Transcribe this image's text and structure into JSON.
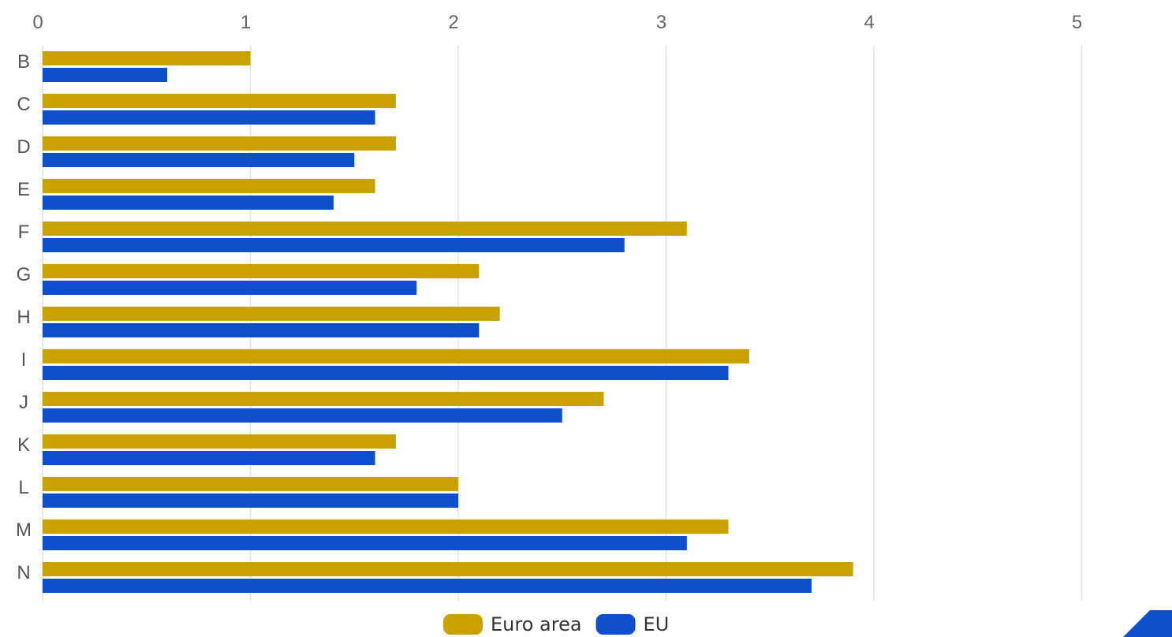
{
  "chart_data": {
    "type": "bar",
    "orientation": "horizontal",
    "categories": [
      "B",
      "C",
      "D",
      "E",
      "F",
      "G",
      "H",
      "I",
      "J",
      "K",
      "L",
      "M",
      "N"
    ],
    "series": [
      {
        "name": "Euro area",
        "color": "#c9a100",
        "values": [
          1.0,
          1.7,
          1.7,
          1.6,
          3.1,
          2.1,
          2.2,
          3.4,
          2.7,
          1.7,
          2.0,
          3.3,
          3.9
        ]
      },
      {
        "name": "EU",
        "color": "#0e4fcc",
        "values": [
          0.6,
          1.6,
          1.5,
          1.4,
          2.8,
          1.8,
          2.1,
          3.3,
          2.5,
          1.6,
          2.0,
          3.1,
          3.7
        ]
      }
    ],
    "xlim": [
      0,
      5
    ],
    "xticks": [
      "0",
      "1",
      "2",
      "3",
      "4",
      "5"
    ],
    "grid": true,
    "legend": "bottom-center",
    "gridColor": "#dde1ea",
    "decoration": {
      "name": "corner-logo-mark",
      "color": "#0e4fcc"
    }
  }
}
